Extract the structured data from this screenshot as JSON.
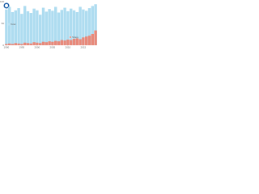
{
  "chart_data": {
    "type": "bar",
    "x": [
      1990,
      1991,
      1992,
      1993,
      1994,
      1995,
      1996,
      1997,
      1998,
      1999,
      2000,
      2001,
      2002,
      2003,
      2004,
      2005,
      2006,
      2007,
      2008,
      2009,
      2010,
      2011,
      2012,
      2013,
      2014,
      2015,
      2016,
      2017,
      2018,
      2019
    ],
    "series": [
      {
        "name": "Total",
        "color": "#aedcf0",
        "values": [
          82,
          88,
          76,
          80,
          85,
          72,
          90,
          78,
          74,
          84,
          80,
          70,
          86,
          77,
          83,
          79,
          88,
          75,
          81,
          86,
          78,
          84,
          80,
          76,
          88,
          82,
          79,
          85,
          90,
          94
        ]
      },
      {
        "name": "Share",
        "color": "#e8897a",
        "values": [
          3,
          4,
          3,
          5,
          4,
          3,
          6,
          5,
          4,
          7,
          6,
          5,
          8,
          7,
          9,
          8,
          10,
          9,
          12,
          11,
          13,
          12,
          15,
          16,
          14,
          18,
          20,
          22,
          26,
          34
        ]
      }
    ],
    "xlim": [
      1989.5,
      2019.5
    ],
    "xticks": [
      1990,
      1995,
      2000,
      2005,
      2010,
      2015
    ],
    "ylim": [
      0,
      100
    ],
    "yticks": [
      0,
      50,
      100
    ]
  }
}
